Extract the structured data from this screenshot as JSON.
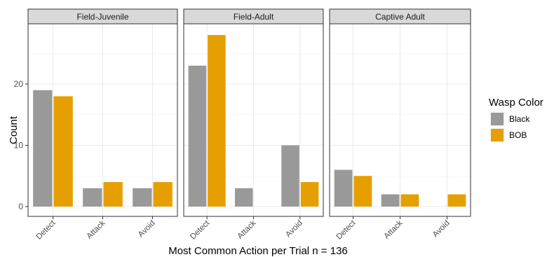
{
  "chart_data": {
    "type": "bar",
    "facet_titles": [
      "Field-Juvenile",
      "Field-Adult",
      "Captive Adult"
    ],
    "categories": [
      "Detect",
      "Attack",
      "Avoid"
    ],
    "xlabel": "Most Common Action per Trial n = 136",
    "ylabel": "Count",
    "ylim": [
      0,
      30
    ],
    "yticks": [
      0,
      10,
      20
    ],
    "grid": true,
    "legend": {
      "title": "Wasp Color",
      "position": "right"
    },
    "series": [
      {
        "name": "Black",
        "color": "#999999"
      },
      {
        "name": "BOB",
        "color": "#E69F00"
      }
    ],
    "panels": [
      {
        "title": "Field-Juvenile",
        "values": {
          "Black": [
            19,
            3,
            3
          ],
          "BOB": [
            18,
            4,
            4
          ]
        }
      },
      {
        "title": "Field-Adult",
        "values": {
          "Black": [
            23,
            3,
            10
          ],
          "BOB": [
            28,
            0,
            4
          ]
        }
      },
      {
        "title": "Captive Adult",
        "values": {
          "Black": [
            6,
            2,
            0
          ],
          "BOB": [
            5,
            2,
            2
          ]
        }
      }
    ]
  }
}
